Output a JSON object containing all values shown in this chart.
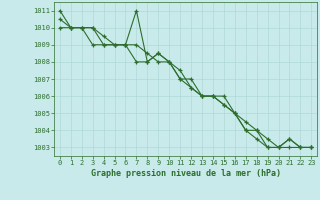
{
  "title": "Graphe pression niveau de la mer (hPa)",
  "background_color": "#c8eaea",
  "grid_color": "#b0d8d8",
  "line_color": "#2d6e2d",
  "marker_color": "#2d6e2d",
  "xlim": [
    -0.5,
    23.5
  ],
  "ylim": [
    1002.5,
    1011.5
  ],
  "yticks": [
    1003,
    1004,
    1005,
    1006,
    1007,
    1008,
    1009,
    1010,
    1011
  ],
  "xticks": [
    0,
    1,
    2,
    3,
    4,
    5,
    6,
    7,
    8,
    9,
    10,
    11,
    12,
    13,
    14,
    15,
    16,
    17,
    18,
    19,
    20,
    21,
    22,
    23
  ],
  "series": [
    [
      1011,
      1010,
      1010,
      1010,
      1009,
      1009,
      1009,
      1011,
      1008,
      1008.5,
      1008,
      1007,
      1007,
      1006,
      1006,
      1006,
      1005,
      1004,
      1004,
      1003,
      1003,
      1003.5,
      1003,
      1003
    ],
    [
      1010,
      1010,
      1010,
      1009,
      1009,
      1009,
      1009,
      1009,
      1008.5,
      1008,
      1008,
      1007.5,
      1006.5,
      1006,
      1006,
      1005.5,
      1005,
      1004.5,
      1004,
      1003.5,
      1003,
      1003,
      1003,
      1003
    ],
    [
      1010.5,
      1010,
      1010,
      1010,
      1009.5,
      1009,
      1009,
      1008,
      1008,
      1008.5,
      1008,
      1007,
      1006.5,
      1006,
      1006,
      1005.5,
      1005,
      1004,
      1003.5,
      1003,
      1003,
      1003.5,
      1003,
      1003
    ]
  ],
  "tick_fontsize": 5,
  "xlabel_fontsize": 6,
  "linewidth": 0.8,
  "markersize": 3
}
